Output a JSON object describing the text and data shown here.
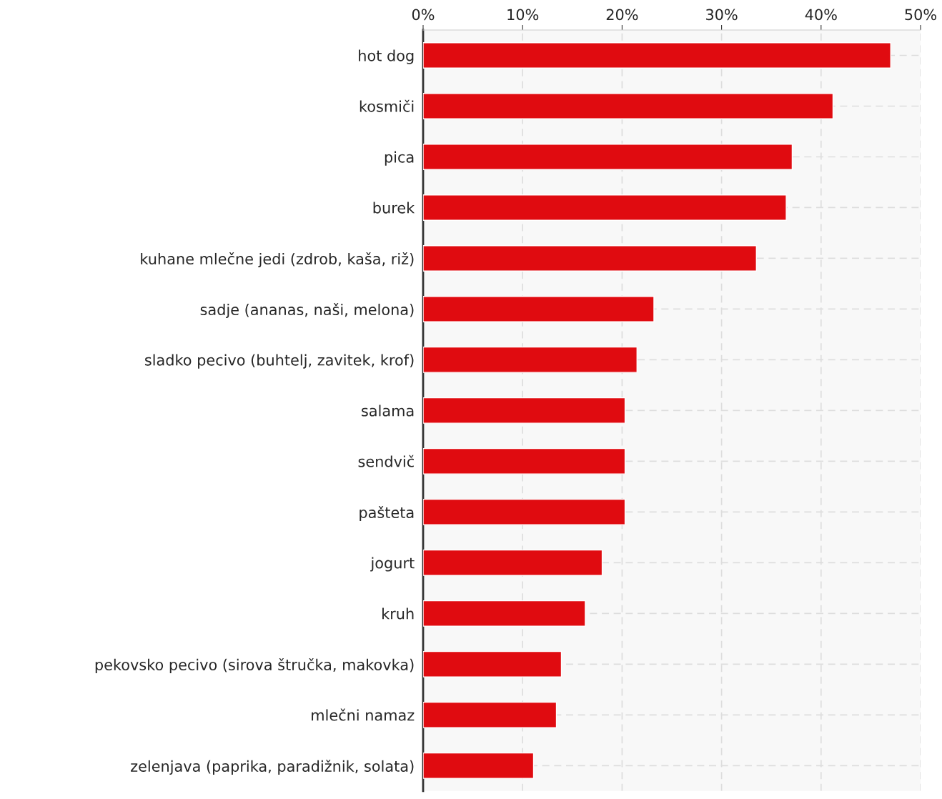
{
  "chart_data": {
    "type": "bar",
    "orientation": "horizontal",
    "categories": [
      "hot dog",
      "kosmiči",
      "pica",
      "burek",
      "kuhane mlečne jedi (zdrob, kaša, riž)",
      "sadje (ananas, naši, melona)",
      "sladko pecivo (buhtelj, zavitek, krof)",
      "salama",
      "sendvič",
      "pašteta",
      "jogurt",
      "kruh",
      "pekovsko pecivo (sirova štručka, makovka)",
      "mlečni namaz",
      "zelenjava (paprika, paradižnik, solata)"
    ],
    "values": [
      47.0,
      41.2,
      37.1,
      36.5,
      33.5,
      23.2,
      21.5,
      20.3,
      20.3,
      20.3,
      18.0,
      16.3,
      13.9,
      13.4,
      11.1
    ],
    "color": "#e00b10",
    "xlim": [
      0,
      50
    ],
    "xticks": [
      {
        "value": 0,
        "label": "0%"
      },
      {
        "value": 10,
        "label": "10%"
      },
      {
        "value": 20,
        "label": "20%"
      },
      {
        "value": 30,
        "label": "30%"
      },
      {
        "value": 40,
        "label": "40%"
      },
      {
        "value": 50,
        "label": "50%"
      }
    ],
    "grid": true
  }
}
